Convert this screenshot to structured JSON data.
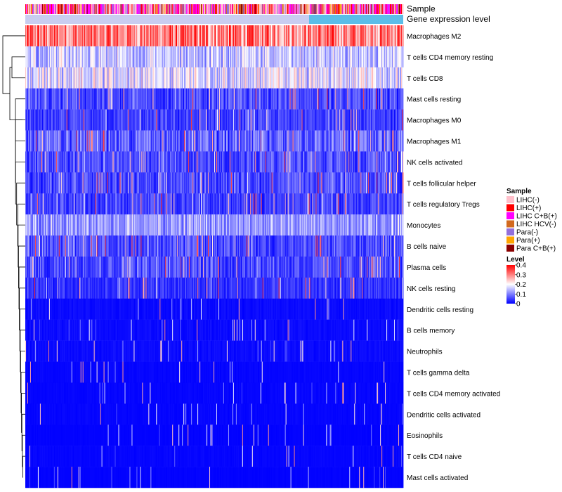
{
  "chart_data": {
    "type": "heatmap",
    "title": "",
    "annotation_tracks": [
      "Sample",
      "Gene expression level"
    ],
    "rows": [
      {
        "name": "Macrophages M2",
        "mean": 0.3
      },
      {
        "name": "T cells CD4 memory resting",
        "mean": 0.13
      },
      {
        "name": "T cells CD8",
        "mean": 0.15
      },
      {
        "name": "Mast cells resting",
        "mean": 0.06
      },
      {
        "name": "Macrophages M0",
        "mean": 0.05
      },
      {
        "name": "Macrophages M1",
        "mean": 0.08
      },
      {
        "name": "NK cells activated",
        "mean": 0.06
      },
      {
        "name": "T cells follicular helper",
        "mean": 0.06
      },
      {
        "name": "T cells regulatory  Tregs",
        "mean": 0.05
      },
      {
        "name": "Monocytes",
        "mean": 0.1
      },
      {
        "name": "B cells naive",
        "mean": 0.06
      },
      {
        "name": "Plasma cells",
        "mean": 0.06
      },
      {
        "name": "NK cells resting",
        "mean": 0.04
      },
      {
        "name": "Dendritic cells resting",
        "mean": 0.02
      },
      {
        "name": "B cells memory",
        "mean": 0.02
      },
      {
        "name": "Neutrophils",
        "mean": 0.02
      },
      {
        "name": "T cells gamma delta",
        "mean": 0.01
      },
      {
        "name": "T cells CD4 memory activated",
        "mean": 0.01
      },
      {
        "name": "Dendritic cells activated",
        "mean": 0.01
      },
      {
        "name": "Eosinophils",
        "mean": 0.005
      },
      {
        "name": "T cells CD4 naive",
        "mean": 0.01
      },
      {
        "name": "Mast cells activated",
        "mean": 0.005
      }
    ],
    "n_samples": 540,
    "sample_legend": {
      "title": "Sample",
      "entries": [
        {
          "label": "LIHC(-)",
          "color": "#ffc0cb"
        },
        {
          "label": "LIHC(+)",
          "color": "#ff0000"
        },
        {
          "label": "LIHC C+B(+)",
          "color": "#ff00ff"
        },
        {
          "label": "LIHC HCV(-)",
          "color": "#d2691e"
        },
        {
          "label": "Para(-)",
          "color": "#9370db"
        },
        {
          "label": "Para(+)",
          "color": "#ffa500"
        },
        {
          "label": "Para C+B(+)",
          "color": "#8b0000"
        }
      ]
    },
    "level_legend": {
      "title": "Level",
      "ticks": [
        "0.4",
        "0.3",
        "0.2",
        "0.1",
        "0"
      ],
      "tick_values": [
        0.4,
        0.3,
        0.2,
        0.1,
        0
      ],
      "range": [
        0,
        0.4
      ],
      "colors": [
        "#0000ff",
        "#ffffff",
        "#ff0000"
      ]
    },
    "expression_track_color": "#5bbde8"
  }
}
